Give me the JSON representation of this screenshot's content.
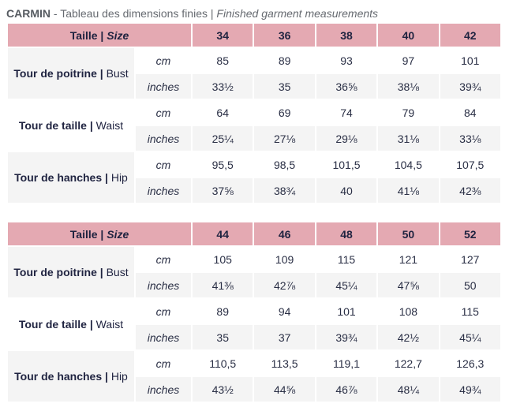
{
  "title": {
    "brand": "CARMIN",
    "sep": " - ",
    "fr": "Tableau des dimensions finies",
    "bar": " | ",
    "en": "Finished garment measurements"
  },
  "tables": [
    {
      "header": {
        "fr": "Taille",
        "en": "Size",
        "sizes": [
          "34",
          "36",
          "38",
          "40",
          "42"
        ]
      },
      "rows": [
        {
          "fr": "Tour de poitrine",
          "en": "Bust",
          "cm": [
            "85",
            "89",
            "93",
            "97",
            "101"
          ],
          "inches": [
            "33½",
            "35",
            "36⅝",
            "38⅛",
            "39¾"
          ]
        },
        {
          "fr": "Tour de taille",
          "en": "Waist",
          "cm": [
            "64",
            "69",
            "74",
            "79",
            "84"
          ],
          "inches": [
            "25¼",
            "27⅛",
            "29⅛",
            "31⅛",
            "33⅛"
          ]
        },
        {
          "fr": "Tour de hanches",
          "en": "Hip",
          "cm": [
            "95,5",
            "98,5",
            "101,5",
            "104,5",
            "107,5"
          ],
          "inches": [
            "37⅝",
            "38¾",
            "40",
            "41⅛",
            "42⅜"
          ]
        }
      ]
    },
    {
      "header": {
        "fr": "Taille",
        "en": "Size",
        "sizes": [
          "44",
          "46",
          "48",
          "50",
          "52"
        ]
      },
      "rows": [
        {
          "fr": "Tour de poitrine",
          "en": "Bust",
          "cm": [
            "105",
            "109",
            "115",
            "121",
            "127"
          ],
          "inches": [
            "41⅜",
            "42⅞",
            "45¼",
            "47⅝",
            "50"
          ]
        },
        {
          "fr": "Tour de taille",
          "en": "Waist",
          "cm": [
            "89",
            "94",
            "101",
            "108",
            "115"
          ],
          "inches": [
            "35",
            "37",
            "39¾",
            "42½",
            "45¼"
          ]
        },
        {
          "fr": "Tour de hanches",
          "en": "Hip",
          "cm": [
            "110,5",
            "113,5",
            "119,1",
            "122,7",
            "126,3"
          ],
          "inches": [
            "43½",
            "44⅝",
            "46⅞",
            "48¼",
            "49¾"
          ]
        }
      ]
    }
  ],
  "units": {
    "cm": "cm",
    "inches": "inches"
  }
}
